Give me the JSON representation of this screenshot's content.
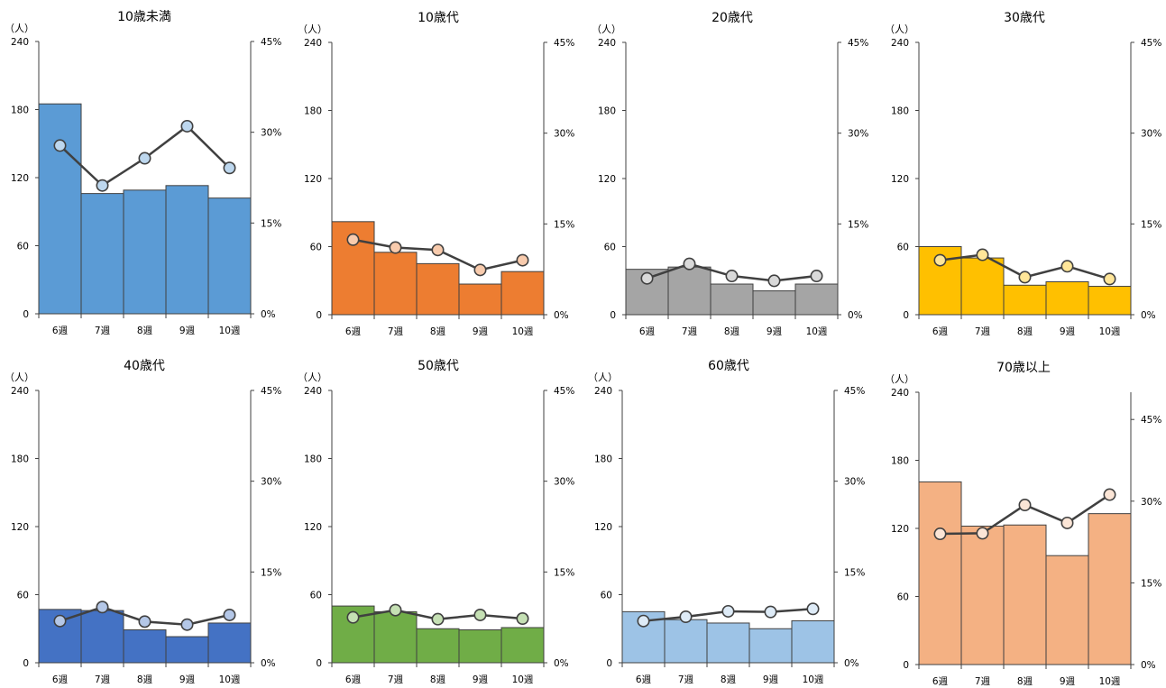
{
  "chart_data": [
    {
      "type": "bar",
      "title": "10歳未満",
      "unit_label": "（人）",
      "categories": [
        "6週",
        "7週",
        "8週",
        "9週",
        "10週"
      ],
      "yticks": [
        "0",
        "60",
        "120",
        "180",
        "240"
      ],
      "ylim": [
        0,
        240
      ],
      "y2ticks": [
        "0%",
        "15%",
        "30%",
        "45%"
      ],
      "y2lim": [
        0,
        45
      ],
      "series": [
        {
          "type": "bar",
          "axis": "left",
          "color": "#5B9BD5",
          "values": [
            185,
            106,
            109,
            113,
            102
          ]
        },
        {
          "type": "line",
          "axis": "right",
          "marker_color": "#BDD7EE",
          "values": [
            27.8,
            21.2,
            25.7,
            31.0,
            24.1
          ]
        }
      ]
    },
    {
      "type": "bar",
      "title": "10歳代",
      "unit_label": "（人）",
      "categories": [
        "6週",
        "7週",
        "8週",
        "9週",
        "10週"
      ],
      "yticks": [
        "0",
        "60",
        "120",
        "180",
        "240"
      ],
      "ylim": [
        0,
        240
      ],
      "y2ticks": [
        "0%",
        "15%",
        "30%",
        "45%"
      ],
      "y2lim": [
        0,
        45
      ],
      "series": [
        {
          "type": "bar",
          "axis": "left",
          "color": "#ED7D31",
          "values": [
            82,
            55,
            45,
            27,
            38
          ]
        },
        {
          "type": "line",
          "axis": "right",
          "marker_color": "#F8CBAD",
          "values": [
            12.4,
            11.1,
            10.7,
            7.4,
            9.0
          ]
        }
      ]
    },
    {
      "type": "bar",
      "title": "20歳代",
      "unit_label": "（人）",
      "categories": [
        "6週",
        "7週",
        "8週",
        "9週",
        "10週"
      ],
      "yticks": [
        "0",
        "60",
        "120",
        "180",
        "240"
      ],
      "ylim": [
        0,
        240
      ],
      "y2ticks": [
        "0%",
        "15%",
        "30%",
        "45%"
      ],
      "y2lim": [
        0,
        45
      ],
      "series": [
        {
          "type": "bar",
          "axis": "left",
          "color": "#A5A5A5",
          "values": [
            40,
            42,
            27,
            21,
            27
          ]
        },
        {
          "type": "line",
          "axis": "right",
          "marker_color": "#D9D9D9",
          "values": [
            6.0,
            8.4,
            6.4,
            5.6,
            6.4
          ]
        }
      ]
    },
    {
      "type": "bar",
      "title": "30歳代",
      "unit_label": "（人）",
      "categories": [
        "6週",
        "7週",
        "8週",
        "9週",
        "10週"
      ],
      "yticks": [
        "0",
        "60",
        "120",
        "180",
        "240"
      ],
      "ylim": [
        0,
        240
      ],
      "y2ticks": [
        "0%",
        "15%",
        "30%",
        "45%"
      ],
      "y2lim": [
        0,
        45
      ],
      "series": [
        {
          "type": "bar",
          "axis": "left",
          "color": "#FFC000",
          "values": [
            60,
            50,
            26,
            29,
            25
          ]
        },
        {
          "type": "line",
          "axis": "right",
          "marker_color": "#FFE699",
          "values": [
            9.0,
            9.9,
            6.2,
            8.0,
            5.9
          ]
        }
      ]
    },
    {
      "type": "bar",
      "title": "40歳代",
      "unit_label": "（人）",
      "categories": [
        "6週",
        "7週",
        "8週",
        "9週",
        "10週"
      ],
      "yticks": [
        "0",
        "60",
        "120",
        "180",
        "240"
      ],
      "ylim": [
        0,
        240
      ],
      "y2ticks": [
        "0%",
        "15%",
        "30%",
        "45%"
      ],
      "y2lim": [
        0,
        45
      ],
      "series": [
        {
          "type": "bar",
          "axis": "left",
          "color": "#4472C4",
          "values": [
            47,
            46,
            29,
            23,
            35
          ]
        },
        {
          "type": "line",
          "axis": "right",
          "marker_color": "#B4C7E7",
          "values": [
            6.9,
            9.2,
            6.8,
            6.3,
            7.9
          ]
        }
      ]
    },
    {
      "type": "bar",
      "title": "50歳代",
      "unit_label": "（人）",
      "categories": [
        "6週",
        "7週",
        "8週",
        "9週",
        "10週"
      ],
      "yticks": [
        "0",
        "60",
        "120",
        "180",
        "240"
      ],
      "ylim": [
        0,
        240
      ],
      "y2ticks": [
        "0%",
        "15%",
        "30%",
        "45%"
      ],
      "y2lim": [
        0,
        45
      ],
      "series": [
        {
          "type": "bar",
          "axis": "left",
          "color": "#70AD47",
          "values": [
            50,
            45,
            30,
            29,
            31
          ]
        },
        {
          "type": "line",
          "axis": "right",
          "marker_color": "#C5E0B4",
          "values": [
            7.5,
            8.7,
            7.2,
            7.9,
            7.3
          ]
        }
      ]
    },
    {
      "type": "bar",
      "title": "60歳代",
      "unit_label": "（人）",
      "categories": [
        "6週",
        "7週",
        "8週",
        "9週",
        "10週"
      ],
      "yticks": [
        "0",
        "60",
        "120",
        "180",
        "240"
      ],
      "ylim": [
        0,
        240
      ],
      "y2ticks": [
        "0%",
        "15%",
        "30%",
        "45%"
      ],
      "y2lim": [
        0,
        45
      ],
      "series": [
        {
          "type": "bar",
          "axis": "left",
          "color": "#9DC3E6",
          "values": [
            45,
            38,
            35,
            30,
            37
          ]
        },
        {
          "type": "line",
          "axis": "right",
          "marker_color": "#DEEBF7",
          "values": [
            6.9,
            7.6,
            8.5,
            8.4,
            8.9
          ]
        }
      ]
    },
    {
      "type": "bar",
      "title": "70歳以上",
      "unit_label": "（人）",
      "categories": [
        "6週",
        "7週",
        "8週",
        "9週",
        "10週"
      ],
      "yticks": [
        "0",
        "60",
        "120",
        "180",
        "240"
      ],
      "ylim": [
        0,
        240
      ],
      "y2ticks": [
        "0%",
        "15%",
        "30%",
        "45%"
      ],
      "y2lim": [
        0,
        50
      ],
      "series": [
        {
          "type": "bar",
          "axis": "left",
          "color": "#F4B183",
          "values": [
            161,
            122,
            123,
            96,
            133
          ]
        },
        {
          "type": "line",
          "axis": "right",
          "marker_color": "#FBE5D6",
          "values": [
            24.0,
            24.1,
            29.3,
            26.0,
            31.2
          ]
        }
      ]
    }
  ]
}
